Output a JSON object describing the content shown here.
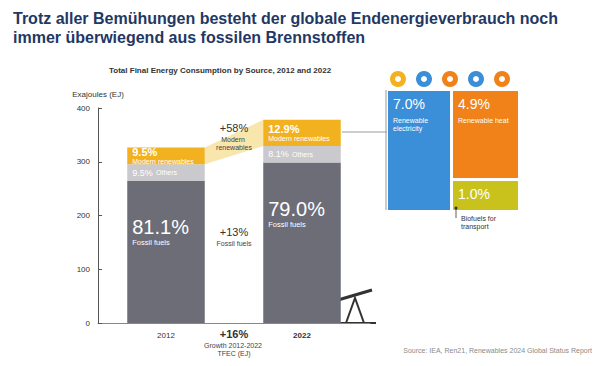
{
  "chart_data": {
    "type": "bar",
    "title": "Trotz aller Bemühungen besteht der globale Endenergieverbrauch noch immer überwiegend aus fossilen Brennstoffen",
    "subtitle": "Total Final Energy Consumption by Source, 2012 and 2022",
    "y_label": "Exajoules (EJ)",
    "categories": [
      "2012",
      "2022"
    ],
    "stacked": true,
    "grid": false,
    "ylim": [
      0,
      400
    ],
    "yticks": [
      0,
      100,
      200,
      300,
      400
    ],
    "series": [
      {
        "name": "Fossil fuels",
        "color": "#6d6d77",
        "values": [
          264.4,
          298.6
        ],
        "share_labels": [
          "81.1%",
          "79.0%"
        ]
      },
      {
        "name": "Others",
        "color": "#c9c9ce",
        "values": [
          31.0,
          30.6
        ],
        "share_labels": [
          "9.5%",
          "8.1%"
        ]
      },
      {
        "name": "Modern renewables",
        "color": "#f2b21f",
        "values": [
          31.0,
          48.8
        ],
        "share_labels": [
          "9.5%",
          "12.9%"
        ]
      }
    ],
    "growth": [
      {
        "label": "+58%",
        "text": "Modern renewables"
      },
      {
        "label": "+13%",
        "text": "Fossil fuels"
      },
      {
        "label": "+16%",
        "text": "Growth 2012-2022 TFEC (EJ)"
      }
    ],
    "breakdown": {
      "items": [
        {
          "name": "Renewable electricity",
          "label": "7.0%",
          "color": "#3b8ed8"
        },
        {
          "name": "Renewable heat",
          "label": "4.9%",
          "color": "#f08219"
        },
        {
          "name": "Biofuels for transport",
          "label": "1.0%",
          "color": "#c9c21c"
        }
      ]
    },
    "source": "Source: IEA, Ren21, Renewables 2024 Global Status Report"
  }
}
